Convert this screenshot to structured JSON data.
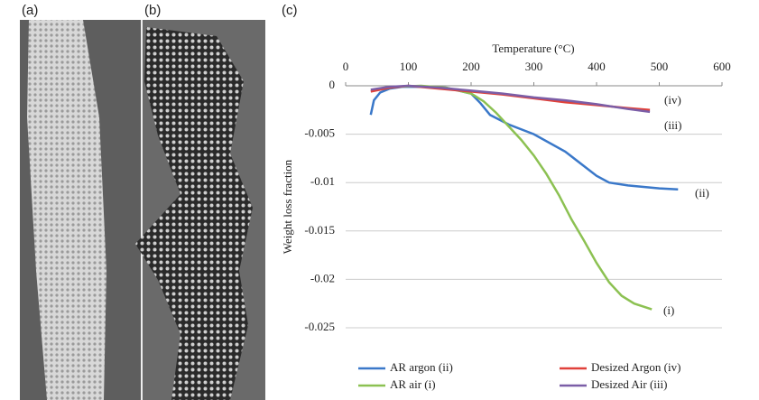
{
  "panel_labels": [
    "(a)",
    "(b)",
    "(c)"
  ],
  "chart_data": {
    "type": "line",
    "x_label": "Temperature (°C)",
    "y_label": "Weight loss  fraction",
    "xlim": [
      0,
      600
    ],
    "xticks": [
      0,
      100,
      200,
      300,
      400,
      500,
      600
    ],
    "ylim": [
      -0.025,
      0
    ],
    "yticks": [
      0,
      -0.005,
      -0.01,
      -0.015,
      -0.02,
      -0.025
    ],
    "grid": true,
    "legend": "bottom",
    "annotations": [
      "(iv)",
      "(iii)",
      "(ii)",
      "(i)"
    ],
    "series": [
      {
        "name": "AR argon (ii)",
        "color": "#3a78c9",
        "x": [
          40,
          45,
          55,
          70,
          90,
          120,
          160,
          200,
          215,
          230,
          260,
          300,
          350,
          400,
          420,
          450,
          500,
          530
        ],
        "values": [
          -0.003,
          -0.0015,
          -0.0007,
          -0.0003,
          -0.0001,
          -0.0001,
          -0.0002,
          -0.0008,
          -0.0018,
          -0.003,
          -0.004,
          -0.005,
          -0.0068,
          -0.0093,
          -0.01,
          -0.0103,
          -0.0106,
          -0.0107
        ]
      },
      {
        "name": "AR air (i)",
        "color": "#8cc152",
        "x": [
          50,
          80,
          120,
          160,
          200,
          220,
          240,
          260,
          280,
          300,
          320,
          340,
          360,
          380,
          400,
          420,
          440,
          460,
          488
        ],
        "values": [
          -0.0004,
          -0.0001,
          0,
          -0.0002,
          -0.0008,
          -0.0016,
          -0.0028,
          -0.0042,
          -0.0056,
          -0.0072,
          -0.0091,
          -0.0113,
          -0.0138,
          -0.016,
          -0.0183,
          -0.0203,
          -0.0217,
          -0.0225,
          -0.0231
        ]
      },
      {
        "name": "Desized Argon (iv)",
        "color": "#e0413a",
        "x": [
          40,
          70,
          100,
          150,
          200,
          250,
          300,
          350,
          400,
          450,
          485
        ],
        "values": [
          -0.0006,
          -0.0002,
          0,
          -0.0003,
          -0.0006,
          -0.0009,
          -0.0013,
          -0.0017,
          -0.002,
          -0.0023,
          -0.0025
        ]
      },
      {
        "name": "Desized Air (iii)",
        "color": "#7b5ea7",
        "x": [
          40,
          70,
          100,
          150,
          200,
          250,
          300,
          350,
          400,
          450,
          485
        ],
        "values": [
          -0.0004,
          -0.0001,
          0,
          -0.0002,
          -0.0005,
          -0.0008,
          -0.0012,
          -0.0015,
          -0.0019,
          -0.0024,
          -0.0027
        ]
      }
    ]
  }
}
